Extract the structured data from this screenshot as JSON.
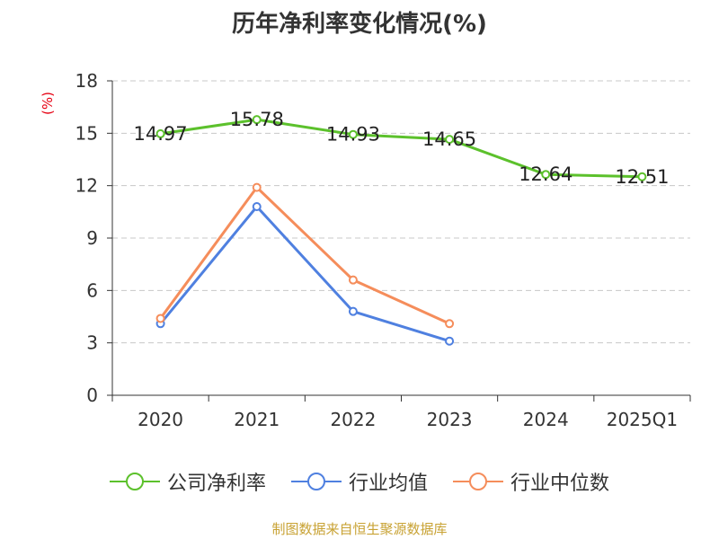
{
  "chart_data": {
    "type": "line",
    "title": "历年净利率变化情况(%)",
    "ylabel": "(%)",
    "categories": [
      "2020",
      "2021",
      "2022",
      "2023",
      "2024",
      "2025Q1"
    ],
    "ylim": [
      0,
      18
    ],
    "yticks": [
      0,
      3,
      6,
      9,
      12,
      15,
      18
    ],
    "grid": true,
    "legend_position": "bottom",
    "series": [
      {
        "name": "公司净利率",
        "color": "#5cc12c",
        "values": [
          14.97,
          15.78,
          14.93,
          14.65,
          12.64,
          12.51
        ],
        "labels": [
          "14.97",
          "15.78",
          "14.93",
          "14.65",
          "12.64",
          "12.51"
        ]
      },
      {
        "name": "行业均值",
        "color": "#4f80e0",
        "values": [
          4.1,
          10.8,
          4.8,
          3.1,
          null,
          null
        ]
      },
      {
        "name": "行业中位数",
        "color": "#f58d5b",
        "values": [
          4.4,
          11.9,
          6.6,
          4.1,
          null,
          null
        ]
      }
    ]
  },
  "footer": {
    "source": "制图数据来自恒生聚源数据库"
  }
}
